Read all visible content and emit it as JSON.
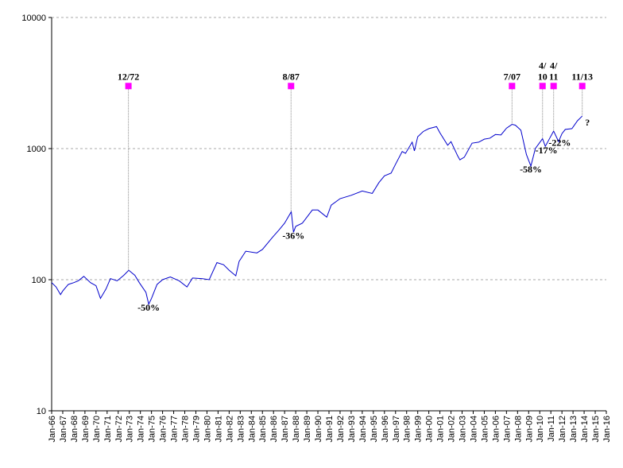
{
  "chart_data": {
    "type": "line",
    "log_y": true,
    "grid": true,
    "xlim": [
      1966,
      2016
    ],
    "ylim": [
      10,
      10000
    ],
    "yticks": [
      10,
      100,
      1000,
      10000
    ],
    "xticks": [
      {
        "value": 1966,
        "label": "Jan-66"
      },
      {
        "value": 1967,
        "label": "Jan-67"
      },
      {
        "value": 1968,
        "label": "Jan-68"
      },
      {
        "value": 1969,
        "label": "Jan-69"
      },
      {
        "value": 1970,
        "label": "Jan-70"
      },
      {
        "value": 1971,
        "label": "Jan-71"
      },
      {
        "value": 1972,
        "label": "Jan-72"
      },
      {
        "value": 1973,
        "label": "Jan-73"
      },
      {
        "value": 1974,
        "label": "Jan-74"
      },
      {
        "value": 1975,
        "label": "Jan-75"
      },
      {
        "value": 1976,
        "label": "Jan-76"
      },
      {
        "value": 1977,
        "label": "Jan-77"
      },
      {
        "value": 1978,
        "label": "Jan-78"
      },
      {
        "value": 1979,
        "label": "Jan-79"
      },
      {
        "value": 1980,
        "label": "Jan-80"
      },
      {
        "value": 1981,
        "label": "Jan-81"
      },
      {
        "value": 1982,
        "label": "Jan-82"
      },
      {
        "value": 1983,
        "label": "Jan-83"
      },
      {
        "value": 1984,
        "label": "Jan-84"
      },
      {
        "value": 1985,
        "label": "Jan-85"
      },
      {
        "value": 1986,
        "label": "Jan-86"
      },
      {
        "value": 1987,
        "label": "Jan-87"
      },
      {
        "value": 1988,
        "label": "Jan-88"
      },
      {
        "value": 1989,
        "label": "Jan-89"
      },
      {
        "value": 1990,
        "label": "Jan-90"
      },
      {
        "value": 1991,
        "label": "Jan-91"
      },
      {
        "value": 1992,
        "label": "Jan-92"
      },
      {
        "value": 1993,
        "label": "Jan-93"
      },
      {
        "value": 1994,
        "label": "Jan-94"
      },
      {
        "value": 1995,
        "label": "Jan-95"
      },
      {
        "value": 1996,
        "label": "Jan-96"
      },
      {
        "value": 1997,
        "label": "Jan-97"
      },
      {
        "value": 1998,
        "label": "Jan-98"
      },
      {
        "value": 1999,
        "label": "Jan-99"
      },
      {
        "value": 2000,
        "label": "Jan-00"
      },
      {
        "value": 2001,
        "label": "Jan-01"
      },
      {
        "value": 2002,
        "label": "Jan-02"
      },
      {
        "value": 2003,
        "label": "Jan-03"
      },
      {
        "value": 2004,
        "label": "Jan-04"
      },
      {
        "value": 2005,
        "label": "Jan-05"
      },
      {
        "value": 2006,
        "label": "Jan-06"
      },
      {
        "value": 2007,
        "label": "Jan-07"
      },
      {
        "value": 2008,
        "label": "Jan-08"
      },
      {
        "value": 2009,
        "label": "Jan-09"
      },
      {
        "value": 2010,
        "label": "Jan-10"
      },
      {
        "value": 2011,
        "label": "Jan-11"
      },
      {
        "value": 2012,
        "label": "Jan-12"
      },
      {
        "value": 2013,
        "label": "Jan-13"
      },
      {
        "value": 2014,
        "label": "Jan-14"
      },
      {
        "value": 2015,
        "label": "Jan-15"
      },
      {
        "value": 2016,
        "label": "Jan-16"
      }
    ],
    "x": [
      1966.0,
      1966.4,
      1966.8,
      1967.0,
      1967.5,
      1968.0,
      1968.4,
      1968.9,
      1969.5,
      1970.0,
      1970.4,
      1970.9,
      1971.3,
      1971.9,
      1972.5,
      1972.95,
      1973.5,
      1973.9,
      1974.5,
      1974.75,
      1975.0,
      1975.5,
      1976.0,
      1976.7,
      1977.5,
      1978.2,
      1978.7,
      1979.5,
      1980.2,
      1980.9,
      1981.5,
      1982.0,
      1982.6,
      1982.9,
      1983.5,
      1984.5,
      1985.0,
      1985.9,
      1986.5,
      1987.0,
      1987.6,
      1987.8,
      1988.0,
      1988.6,
      1989.5,
      1990.0,
      1990.8,
      1991.2,
      1992.0,
      1993.0,
      1994.0,
      1994.9,
      1995.5,
      1996.0,
      1996.6,
      1997.0,
      1997.6,
      1997.9,
      1998.5,
      1998.7,
      1999.0,
      1999.5,
      2000.0,
      2000.7,
      2001.0,
      2001.7,
      2002.0,
      2002.6,
      2002.8,
      2003.2,
      2003.9,
      2004.5,
      2005.0,
      2005.5,
      2006.0,
      2006.5,
      2007.0,
      2007.5,
      2007.8,
      2008.3,
      2008.8,
      2009.2,
      2009.6,
      2010.25,
      2010.5,
      2010.9,
      2011.25,
      2011.7,
      2012.0,
      2012.3,
      2012.9,
      2013.4,
      2013.83
    ],
    "series": [
      {
        "color": "#0000cc",
        "values": [
          95,
          88,
          77,
          82,
          92,
          95,
          98,
          106,
          95,
          90,
          72,
          85,
          102,
          98,
          108,
          118,
          108,
          95,
          80,
          65,
          72,
          92,
          100,
          105,
          98,
          88,
          103,
          102,
          100,
          135,
          130,
          118,
          107,
          138,
          165,
          160,
          170,
          210,
          240,
          270,
          330,
          230,
          255,
          270,
          340,
          340,
          300,
          370,
          415,
          440,
          475,
          455,
          550,
          620,
          650,
          760,
          950,
          920,
          1120,
          960,
          1230,
          1350,
          1420,
          1470,
          1320,
          1060,
          1130,
          880,
          820,
          860,
          1100,
          1120,
          1180,
          1200,
          1280,
          1270,
          1430,
          1530,
          1510,
          1380,
          900,
          735,
          1000,
          1190,
          1040,
          1200,
          1360,
          1130,
          1300,
          1400,
          1420,
          1630,
          1770
        ]
      }
    ],
    "peaks": [
      {
        "x": 1972.92,
        "y": 3000,
        "label": [
          "12/72"
        ]
      },
      {
        "x": 1987.58,
        "y": 3000,
        "label": [
          "8/87"
        ]
      },
      {
        "x": 2007.5,
        "y": 3000,
        "label": [
          "7/07"
        ]
      },
      {
        "x": 2010.25,
        "y": 3000,
        "label": [
          "4/",
          "10"
        ]
      },
      {
        "x": 2011.25,
        "y": 3000,
        "label": [
          "4/",
          "11"
        ]
      },
      {
        "x": 2013.83,
        "y": 3000,
        "label": [
          "11/13"
        ]
      }
    ],
    "annotations": [
      {
        "x": 1974.75,
        "y": 58,
        "label": "-50%"
      },
      {
        "x": 1987.8,
        "y": 205,
        "label": "-36%"
      },
      {
        "x": 2009.2,
        "y": 660,
        "label": "-58%"
      },
      {
        "x": 2010.6,
        "y": 920,
        "label": "-17%"
      },
      {
        "x": 2011.8,
        "y": 1050,
        "label": "-22%"
      },
      {
        "x": 2014.3,
        "y": 1500,
        "label": "?"
      }
    ]
  }
}
